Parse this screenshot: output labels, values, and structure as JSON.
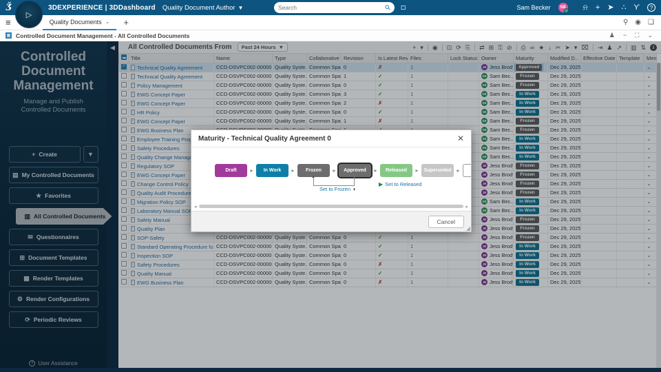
{
  "topbar": {
    "brand": "3DEXPERIENCE | 3DDashboard",
    "app_name": "Quality Document Author",
    "search_placeholder": "Search",
    "user_name": "Sam Becker",
    "user_initials": "SB",
    "icons": [
      {
        "name": "notification-icon",
        "glyph": "⍾"
      },
      {
        "name": "add-content-icon",
        "glyph": "+"
      },
      {
        "name": "share-icon",
        "glyph": "➤"
      },
      {
        "name": "collaborate-icon",
        "glyph": "∴"
      },
      {
        "name": "3ds-play-icon",
        "glyph": "ϒ"
      }
    ]
  },
  "tabbar": {
    "tab_label": "Quality Documents",
    "add_tab": "+",
    "right_icons": [
      {
        "name": "search-content-icon",
        "glyph": "⚲"
      },
      {
        "name": "media-icon",
        "glyph": "◉"
      },
      {
        "name": "comments-icon",
        "glyph": "❏"
      }
    ]
  },
  "breadcrumb": {
    "text": "Controlled Document Management - All Controlled Documents",
    "right_icons": [
      {
        "name": "user-action-icon",
        "glyph": "♟"
      },
      {
        "name": "minimize-icon",
        "glyph": "−"
      },
      {
        "name": "maximize-icon",
        "glyph": "⛶"
      },
      {
        "name": "collapse-icon",
        "glyph": "⌄"
      }
    ]
  },
  "sidebar": {
    "title": "Controlled Document Management",
    "subtitle": "Manage and Publish Controlled Documents",
    "create_label": "Create",
    "items": [
      {
        "label": "My Controlled Documents",
        "icon": "▤",
        "active": false
      },
      {
        "label": "Favorites",
        "icon": "★",
        "active": false
      },
      {
        "label": "All Controlled Documents",
        "icon": "▥",
        "active": true
      },
      {
        "label": "Questionnaires",
        "icon": "✉",
        "active": false
      },
      {
        "label": "Document Templates",
        "icon": "⊞",
        "active": false
      },
      {
        "label": "Render Templates",
        "icon": "▦",
        "active": false
      },
      {
        "label": "Render Configurations",
        "icon": "⚙",
        "active": false
      },
      {
        "label": "Periodic Reviews",
        "icon": "⟳",
        "active": false
      }
    ],
    "footer": "User Assistance"
  },
  "table": {
    "title": "All Controlled Documents From",
    "filter": "Past 24 Hours",
    "toolbar": [
      {
        "name": "add-icon",
        "glyph": "+"
      },
      {
        "name": "add-caret-icon",
        "glyph": "▾"
      },
      {
        "name": "sep"
      },
      {
        "name": "preview-icon",
        "glyph": "◉"
      },
      {
        "name": "sep"
      },
      {
        "name": "lock-icon",
        "glyph": "⊡"
      },
      {
        "name": "reserve-icon",
        "glyph": "⟳"
      },
      {
        "name": "export-doc-icon",
        "glyph": "⎘"
      },
      {
        "name": "sep"
      },
      {
        "name": "exchange-icon",
        "glyph": "⇄"
      },
      {
        "name": "spreadsheet-icon",
        "glyph": "⊞"
      },
      {
        "name": "key-icon",
        "glyph": "⚿"
      },
      {
        "name": "disconnect-icon",
        "glyph": "⊘"
      },
      {
        "name": "sep"
      },
      {
        "name": "print-icon",
        "glyph": "⎙"
      },
      {
        "name": "link-icon",
        "glyph": "∞"
      },
      {
        "name": "favorite-icon",
        "glyph": "★"
      },
      {
        "name": "download-icon",
        "glyph": "↓"
      },
      {
        "name": "cut-icon",
        "glyph": "✂"
      },
      {
        "name": "pointer-icon",
        "glyph": "➤"
      },
      {
        "name": "pointer-caret-icon",
        "glyph": "▾"
      },
      {
        "name": "delete-icon",
        "glyph": "⌧"
      },
      {
        "name": "sep"
      },
      {
        "name": "exit-icon",
        "glyph": "⇥"
      },
      {
        "name": "assign-user-icon",
        "glyph": "♟"
      },
      {
        "name": "forward-icon",
        "glyph": "↗"
      },
      {
        "name": "sep"
      },
      {
        "name": "columns-icon",
        "glyph": "▥"
      },
      {
        "name": "sort-icon",
        "glyph": "⇅"
      }
    ],
    "columns": [
      "Title",
      "Name",
      "Type",
      "Collaborative ...",
      "Revision",
      "Is Latest Revis...",
      "Files",
      "Lock Status",
      "Owner",
      "Maturity",
      "Modified D...",
      "Effective Date",
      "Template",
      "Menu"
    ],
    "rows": [
      {
        "title": "Technical Quality Agreement",
        "name": "CCD-DSVPC002-0000015",
        "type": "Quality Syste...",
        "collab": "Common Space",
        "rev": "0",
        "latest": "no",
        "files": "1",
        "owner": "Jess Brody",
        "initials": "JB",
        "avatar": "#7d3590",
        "maturity": "Approved",
        "mclass": "approved",
        "modified": "Dec 29, 2025, ...",
        "selected": true,
        "focus": true
      },
      {
        "title": "Technical Quality Agreement",
        "name": "CCD-DSVPC002-0000015",
        "type": "Quality Syste...",
        "collab": "Common Space",
        "rev": "1",
        "latest": "yes",
        "files": "1",
        "owner": "Sam Bec...",
        "initials": "SB",
        "avatar": "#2f8f5b",
        "maturity": "Frozen",
        "mclass": "frozen",
        "modified": "Dec 29, 2025, ..."
      },
      {
        "title": "Policy Management",
        "name": "CCD-DSVPC002-0000021",
        "type": "Quality Syste...",
        "collab": "Common Space",
        "rev": "0",
        "latest": "yes",
        "files": "1",
        "owner": "Sam Bec...",
        "initials": "SB",
        "avatar": "#2f8f5b",
        "maturity": "Frozen",
        "mclass": "frozen",
        "modified": "Dec 29, 2025, ..."
      },
      {
        "title": "EWG Concept Paper",
        "name": "CCD-DSVPC002-0000006",
        "type": "Quality Syste...",
        "collab": "Common Space",
        "rev": "3",
        "latest": "yes",
        "files": "1",
        "owner": "Sam Bec...",
        "initials": "SB",
        "avatar": "#2f8f5b",
        "maturity": "In Work",
        "mclass": "inwork",
        "modified": "Dec 29, 2025, ..."
      },
      {
        "title": "EWG Concept Paper",
        "name": "CCD-DSVPC002-0000006",
        "type": "Quality Syste...",
        "collab": "Common Space",
        "rev": "2",
        "latest": "no",
        "files": "1",
        "owner": "Sam Bec...",
        "initials": "SB",
        "avatar": "#2f8f5b",
        "maturity": "In Work",
        "mclass": "inwork",
        "modified": "Dec 29, 2025, ..."
      },
      {
        "title": "HR Policy",
        "name": "CCD-DSVPC002-0000020",
        "type": "Quality Syste...",
        "collab": "Common Space",
        "rev": "0",
        "latest": "yes",
        "files": "1",
        "owner": "Sam Bec...",
        "initials": "SB",
        "avatar": "#2f8f5b",
        "maturity": "In Work",
        "mclass": "inwork",
        "modified": "Dec 29, 2025, ..."
      },
      {
        "title": "EWG Concept Paper",
        "name": "CCD-DSVPC002-0000006",
        "type": "Quality Syste...",
        "collab": "Common Space",
        "rev": "1",
        "latest": "no",
        "files": "1",
        "owner": "Sam Bec...",
        "initials": "SB",
        "avatar": "#2f8f5b",
        "maturity": "Frozen",
        "mclass": "frozen",
        "modified": "Dec 29, 2025, ..."
      },
      {
        "title": "EWG Business Plan",
        "name": "CCD-DSVPC002-0000004",
        "type": "Quality Syste...",
        "collab": "Common Space",
        "rev": "1",
        "latest": "yes",
        "files": "1",
        "owner": "Sam Bec...",
        "initials": "SB",
        "avatar": "#2f8f5b",
        "maturity": "Frozen",
        "mclass": "frozen",
        "modified": "Dec 29, 2025, ..."
      },
      {
        "title": "Employee Training Program SOP",
        "name": "",
        "type": "",
        "collab": "",
        "rev": "",
        "latest": "",
        "files": "",
        "owner": "Sam Bec...",
        "initials": "SB",
        "avatar": "#2f8f5b",
        "maturity": "In Work",
        "mclass": "inwork",
        "modified": "Dec 29, 2025, ..."
      },
      {
        "title": "Safety Procedures",
        "name": "",
        "type": "",
        "collab": "",
        "rev": "",
        "latest": "",
        "files": "",
        "owner": "Sam Bec...",
        "initials": "SB",
        "avatar": "#2f8f5b",
        "maturity": "In Work",
        "mclass": "inwork",
        "modified": "Dec 29, 2025, ..."
      },
      {
        "title": "Quality Change Management",
        "name": "",
        "type": "",
        "collab": "",
        "rev": "",
        "latest": "",
        "files": "",
        "owner": "Sam Bec...",
        "initials": "SB",
        "avatar": "#2f8f5b",
        "maturity": "In Work",
        "mclass": "inwork",
        "modified": "Dec 29, 2025, ..."
      },
      {
        "title": "Regulatory SOP",
        "name": "",
        "type": "",
        "collab": "",
        "rev": "",
        "latest": "",
        "files": "",
        "owner": "Jess Brody",
        "initials": "JB",
        "avatar": "#7d3590",
        "maturity": "Frozen",
        "mclass": "frozen",
        "modified": "Dec 29, 2025, ..."
      },
      {
        "title": "EWG Concept Paper",
        "name": "",
        "type": "",
        "collab": "",
        "rev": "",
        "latest": "",
        "files": "",
        "owner": "Jess Brody",
        "initials": "JB",
        "avatar": "#7d3590",
        "maturity": "Frozen",
        "mclass": "frozen",
        "modified": "Dec 29, 2025, ..."
      },
      {
        "title": "Change Control Policy",
        "name": "",
        "type": "",
        "collab": "",
        "rev": "",
        "latest": "",
        "files": "",
        "owner": "Jess Brody",
        "initials": "JB",
        "avatar": "#7d3590",
        "maturity": "Frozen",
        "mclass": "frozen",
        "modified": "Dec 29, 2025, ..."
      },
      {
        "title": "Quality Audit Procedure",
        "name": "",
        "type": "",
        "collab": "",
        "rev": "",
        "latest": "",
        "files": "",
        "owner": "Jess Brody",
        "initials": "JB",
        "avatar": "#7d3590",
        "maturity": "Frozen",
        "mclass": "frozen",
        "modified": "Dec 29, 2025, ..."
      },
      {
        "title": "Migration Policy SOP",
        "name": "",
        "type": "",
        "collab": "",
        "rev": "",
        "latest": "",
        "files": "",
        "owner": "Sam Bec...",
        "initials": "SB",
        "avatar": "#2f8f5b",
        "maturity": "In Work",
        "mclass": "inwork",
        "modified": "Dec 29, 2025, ..."
      },
      {
        "title": "Laboratory Manual SOP",
        "name": "",
        "type": "",
        "collab": "",
        "rev": "",
        "latest": "",
        "files": "",
        "owner": "Sam Bec...",
        "initials": "SB",
        "avatar": "#2f8f5b",
        "maturity": "In Work",
        "mclass": "inwork",
        "modified": "Dec 29, 2025, ..."
      },
      {
        "title": "Safety Manual",
        "name": "",
        "type": "",
        "collab": "",
        "rev": "",
        "latest": "",
        "files": "",
        "owner": "Jess Brody",
        "initials": "JB",
        "avatar": "#7d3590",
        "maturity": "Frozen",
        "mclass": "frozen",
        "modified": "Dec 29, 2025, ..."
      },
      {
        "title": "Quality Plan",
        "name": "",
        "type": "",
        "collab": "",
        "rev": "",
        "latest": "",
        "files": "",
        "owner": "Jess Brody",
        "initials": "JB",
        "avatar": "#7d3590",
        "maturity": "Frozen",
        "mclass": "frozen",
        "modified": "Dec 29, 2025, ..."
      },
      {
        "title": "SOP-Safety",
        "name": "CCD-DSVPC002-0000003",
        "type": "Quality Syste...",
        "collab": "Common Space",
        "rev": "0",
        "latest": "yes",
        "files": "1",
        "owner": "Jess Brody",
        "initials": "JB",
        "avatar": "#7d3590",
        "maturity": "Frozen",
        "mclass": "frozen",
        "modified": "Dec 29, 2025, ..."
      },
      {
        "title": "Standard Operating Procedure for Site Sec...",
        "name": "CCD-DSVPC002-0000014",
        "type": "Quality Syste...",
        "collab": "Common Space",
        "rev": "0",
        "latest": "yes",
        "files": "1",
        "owner": "Jess Brody",
        "initials": "JB",
        "avatar": "#7d3590",
        "maturity": "In Work",
        "mclass": "inwork",
        "modified": "Dec 29, 2025, ..."
      },
      {
        "title": "Inspection SOP",
        "name": "CCD-DSVPC002-0000012",
        "type": "Quality Syste...",
        "collab": "Common Space",
        "rev": "0",
        "latest": "yes",
        "files": "1",
        "owner": "Jess Brody",
        "initials": "JB",
        "avatar": "#7d3590",
        "maturity": "In Work",
        "mclass": "inwork",
        "modified": "Dec 29, 2025, ..."
      },
      {
        "title": "Safety Procedures",
        "name": "CCD-DSVPC002-0000007",
        "type": "Quality Syste...",
        "collab": "Common Space",
        "rev": "0",
        "latest": "no",
        "files": "1",
        "owner": "Jess Brody",
        "initials": "JB",
        "avatar": "#7d3590",
        "maturity": "In Work",
        "mclass": "inwork",
        "modified": "Dec 29, 2025, ..."
      },
      {
        "title": "Quality Manual",
        "name": "CCD-DSVPC002-0000005",
        "type": "Quality Syste...",
        "collab": "Common Space",
        "rev": "0",
        "latest": "yes",
        "files": "1",
        "owner": "Jess Brody",
        "initials": "JB",
        "avatar": "#7d3590",
        "maturity": "In Work",
        "mclass": "inwork",
        "modified": "Dec 29, 2025, ..."
      },
      {
        "title": "EWG Business Plan",
        "name": "CCD-DSVPC002-0000004",
        "type": "Quality Syste...",
        "collab": "Common Space",
        "rev": "0",
        "latest": "no",
        "files": "1",
        "owner": "Jess Brody",
        "initials": "JB",
        "avatar": "#7d3590",
        "maturity": "In Work",
        "mclass": "inwork",
        "modified": "Dec 29, 2025, ..."
      }
    ]
  },
  "modal": {
    "title": "Maturity - Technical Quality Agreement 0",
    "states": [
      {
        "label": "Draft",
        "bg": "#a23a9c",
        "current": false
      },
      {
        "label": "In Work",
        "bg": "#0f7fa8",
        "current": false
      },
      {
        "label": "Frozen",
        "bg": "#6d6d6d",
        "current": false
      },
      {
        "label": "Approved",
        "bg": "#6d6d6d",
        "current": true
      },
      {
        "label": "Released",
        "bg": "#85c885",
        "current": false
      },
      {
        "label": "Superseded",
        "bg": "#c6c6c6",
        "current": false
      }
    ],
    "action_frozen": "Set to Frozen",
    "action_released": "Set to Released",
    "cancel_label": "Cancel"
  },
  "colors": {
    "topbar": "#0d5580",
    "sidebar": "#0d2b40",
    "inwork_badge": "#0f7593",
    "frozen_badge": "#5d5d5d",
    "link": "#2e6da4"
  }
}
